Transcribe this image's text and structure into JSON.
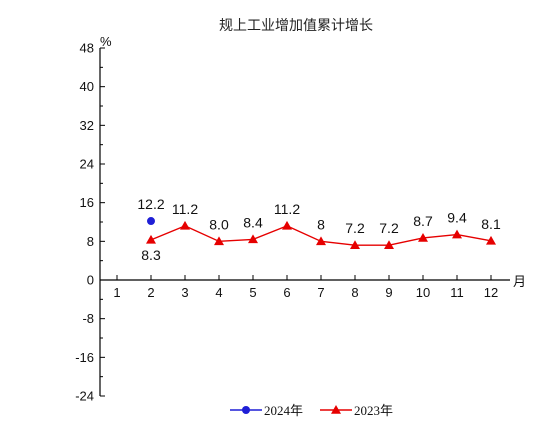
{
  "chart_data": {
    "type": "line",
    "title": "规上工业增加值累计增长",
    "y_unit": "%",
    "x_unit": "月",
    "categories": [
      "1",
      "2",
      "3",
      "4",
      "5",
      "6",
      "7",
      "8",
      "9",
      "10",
      "11",
      "12"
    ],
    "y_ticks": [
      "48",
      "40",
      "32",
      "24",
      "16",
      "8",
      "0",
      "-8",
      "-16",
      "-24"
    ],
    "ylim": [
      -24,
      48
    ],
    "grid": false,
    "legend_position": "bottom",
    "series": [
      {
        "name": "2024年",
        "color": "#1f1fd6",
        "marker": "circle",
        "values": [
          null,
          12.2,
          null,
          null,
          null,
          null,
          null,
          null,
          null,
          null,
          null,
          null
        ],
        "labels": [
          "",
          "12.2",
          "",
          "",
          "",
          "",
          "",
          "",
          "",
          "",
          "",
          ""
        ]
      },
      {
        "name": "2023年",
        "color": "#e60000",
        "marker": "triangle",
        "values": [
          null,
          8.3,
          11.2,
          8.0,
          8.4,
          11.2,
          8,
          7.2,
          7.2,
          8.7,
          9.4,
          8.1
        ],
        "labels": [
          "",
          "8.3",
          "11.2",
          "8.0",
          "8.4",
          "11.2",
          "8",
          "7.2",
          "7.2",
          "8.7",
          "9.4",
          "8.1"
        ]
      }
    ]
  }
}
